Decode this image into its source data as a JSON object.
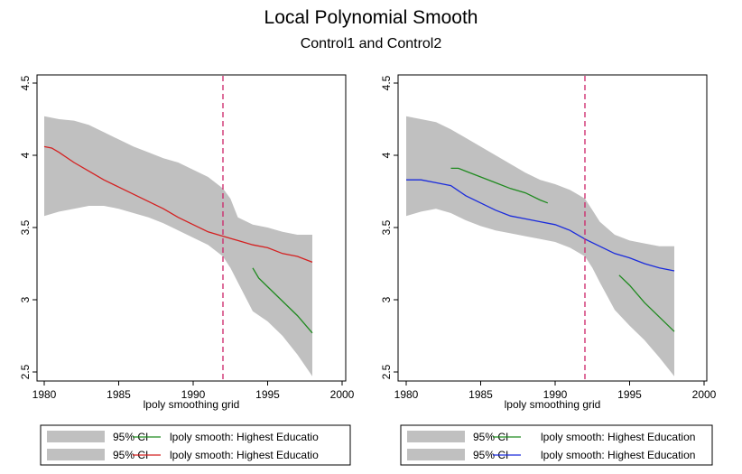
{
  "title": "Local Polynomial Smooth",
  "subtitle": "Control1 and Control2",
  "chart_data": [
    {
      "type": "line",
      "xlabel": "lpoly smoothing grid",
      "ylabel": "",
      "xlim": [
        1980,
        2000
      ],
      "ylim": [
        2.5,
        4.5
      ],
      "xticks": [
        "1980",
        "1985",
        "1990",
        "1995",
        "2000"
      ],
      "yticks": [
        "2.5",
        "3",
        "3.5",
        "4",
        "4.5"
      ],
      "vline": {
        "x": 1992,
        "color": "#cc2266",
        "style": "dashed"
      },
      "ci": [
        {
          "x": [
            1980,
            1981,
            1982,
            1983,
            1984,
            1985,
            1986,
            1987,
            1988,
            1989,
            1990,
            1991,
            1992,
            1992.5,
            1993,
            1994,
            1995,
            1996,
            1997,
            1998
          ],
          "lo": [
            3.58,
            3.61,
            3.63,
            3.65,
            3.65,
            3.63,
            3.6,
            3.57,
            3.53,
            3.48,
            3.43,
            3.38,
            3.3,
            3.22,
            3.12,
            2.92,
            2.85,
            2.75,
            2.62,
            2.47
          ],
          "hi": [
            4.27,
            4.25,
            4.24,
            4.21,
            4.16,
            4.11,
            4.06,
            4.02,
            3.98,
            3.95,
            3.9,
            3.85,
            3.77,
            3.7,
            3.57,
            3.52,
            3.5,
            3.47,
            3.45,
            3.45
          ]
        }
      ],
      "series": [
        {
          "name": "lpoly smooth: Highest Education",
          "color": "#d42020",
          "x": [
            1980,
            1980.5,
            1981,
            1982,
            1983,
            1984,
            1985,
            1986,
            1987,
            1988,
            1989,
            1990,
            1991,
            1992,
            1993,
            1994,
            1995,
            1996,
            1997,
            1998
          ],
          "y": [
            4.06,
            4.05,
            4.02,
            3.95,
            3.89,
            3.83,
            3.78,
            3.73,
            3.68,
            3.63,
            3.57,
            3.52,
            3.47,
            3.44,
            3.41,
            3.38,
            3.36,
            3.32,
            3.3,
            3.26
          ]
        },
        {
          "name": "lpoly smooth: Highest Education",
          "color": "#1f8a1f",
          "x": [
            1994,
            1994.4,
            1995,
            1996,
            1997,
            1998
          ],
          "y": [
            3.22,
            3.15,
            3.09,
            2.99,
            2.89,
            2.77
          ]
        }
      ],
      "legend": [
        {
          "ci_label": "95% CI",
          "color": "#1f8a1f",
          "label": "lpoly smooth: Highest Educatio"
        },
        {
          "ci_label": "95% CI",
          "color": "#d42020",
          "label": "lpoly smooth: Highest Educatio"
        }
      ]
    },
    {
      "type": "line",
      "xlabel": "lpoly smoothing grid",
      "ylabel": "",
      "xlim": [
        1980,
        2000
      ],
      "ylim": [
        2.5,
        4.5
      ],
      "xticks": [
        "1980",
        "1985",
        "1990",
        "1995",
        "2000"
      ],
      "yticks": [
        "2.5",
        "3",
        "3.5",
        "4",
        "4.5"
      ],
      "vline": {
        "x": 1992,
        "color": "#cc2266",
        "style": "dashed"
      },
      "ci": [
        {
          "x": [
            1980,
            1981,
            1982,
            1983,
            1984,
            1985,
            1986,
            1987,
            1988,
            1989,
            1990,
            1991,
            1992,
            1992.5,
            1993,
            1994,
            1995,
            1996,
            1997,
            1998
          ],
          "lo": [
            3.58,
            3.61,
            3.63,
            3.6,
            3.55,
            3.51,
            3.48,
            3.46,
            3.44,
            3.42,
            3.4,
            3.36,
            3.3,
            3.22,
            3.12,
            2.93,
            2.82,
            2.72,
            2.6,
            2.47
          ],
          "hi": [
            4.27,
            4.25,
            4.23,
            4.18,
            4.12,
            4.06,
            4.0,
            3.94,
            3.88,
            3.83,
            3.8,
            3.76,
            3.7,
            3.62,
            3.54,
            3.45,
            3.41,
            3.39,
            3.37,
            3.37
          ]
        }
      ],
      "series": [
        {
          "name": "lpoly smooth: Highest Education",
          "color": "#1a2bdc",
          "x": [
            1980,
            1981,
            1982,
            1983,
            1984,
            1985,
            1986,
            1987,
            1988,
            1989,
            1990,
            1991,
            1992,
            1993,
            1994,
            1995,
            1996,
            1997,
            1998
          ],
          "y": [
            3.83,
            3.83,
            3.81,
            3.79,
            3.72,
            3.67,
            3.62,
            3.58,
            3.56,
            3.54,
            3.52,
            3.48,
            3.42,
            3.37,
            3.32,
            3.29,
            3.25,
            3.22,
            3.2
          ]
        },
        {
          "name": "lpoly smooth: Highest Education",
          "color": "#1f8a1f",
          "x": [
            1983,
            1983.5,
            1984,
            1985,
            1986,
            1987,
            1988,
            1989,
            1989.5
          ],
          "y": [
            3.91,
            3.91,
            3.89,
            3.85,
            3.81,
            3.77,
            3.74,
            3.69,
            3.67
          ]
        },
        {
          "name": "lpoly smooth: Highest Education",
          "color": "#1f8a1f",
          "x": [
            1994.3,
            1995,
            1996,
            1997,
            1998
          ],
          "y": [
            3.17,
            3.1,
            2.98,
            2.88,
            2.78
          ]
        }
      ],
      "legend": [
        {
          "ci_label": "95% CI",
          "color": "#1f8a1f",
          "label": "lpoly smooth: Highest Education"
        },
        {
          "ci_label": "95% CI",
          "color": "#1a2bdc",
          "label": "lpoly smooth: Highest Education"
        }
      ]
    }
  ]
}
